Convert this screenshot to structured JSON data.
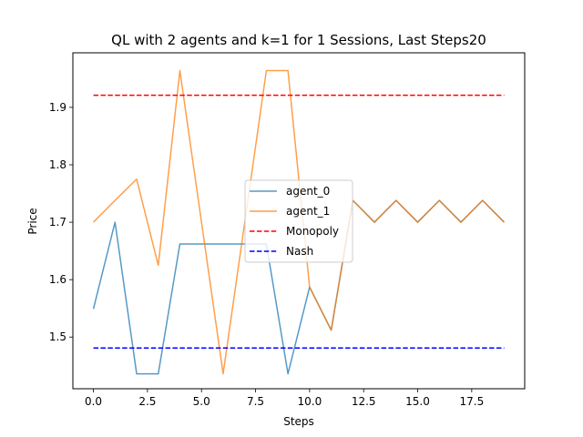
{
  "chart_data": {
    "type": "line",
    "title": "QL with 2 agents and k=1 for 1 Sessions, Last Steps20",
    "xlabel": "Steps",
    "ylabel": "Price",
    "xlim": [
      -0.95,
      19.95
    ],
    "ylim": [
      1.41,
      1.995
    ],
    "x_ticks": [
      0.0,
      2.5,
      5.0,
      7.5,
      10.0,
      12.5,
      15.0,
      17.5
    ],
    "x_tick_labels": [
      "0.0",
      "2.5",
      "5.0",
      "7.5",
      "10.0",
      "12.5",
      "15.0",
      "17.5"
    ],
    "y_ticks": [
      1.5,
      1.6,
      1.7,
      1.8,
      1.9
    ],
    "y_tick_labels": [
      "1.5",
      "1.6",
      "1.7",
      "1.8",
      "1.9"
    ],
    "grid": false,
    "legend_position": "center",
    "x": [
      0,
      1,
      2,
      3,
      4,
      5,
      6,
      7,
      8,
      9,
      10,
      11,
      12,
      13,
      14,
      15,
      16,
      17,
      18,
      19
    ],
    "series": [
      {
        "name": "agent_0",
        "color": "#1f77b4",
        "style": "solid",
        "opacity": 0.75,
        "values": [
          1.549,
          1.7,
          1.436,
          1.436,
          1.662,
          1.662,
          1.662,
          1.662,
          1.662,
          1.436,
          1.587,
          1.512,
          1.738,
          1.7,
          1.738,
          1.7,
          1.738,
          1.7,
          1.738,
          1.7
        ]
      },
      {
        "name": "agent_1",
        "color": "#ff7f0e",
        "style": "solid",
        "opacity": 0.75,
        "values": [
          1.7,
          1.738,
          1.775,
          1.625,
          1.964,
          1.7,
          1.436,
          1.7,
          1.964,
          1.964,
          1.587,
          1.512,
          1.738,
          1.7,
          1.738,
          1.7,
          1.738,
          1.7,
          1.738,
          1.7
        ]
      },
      {
        "name": "Monopoly",
        "color": "#ff0000",
        "style": "dashed",
        "opacity": 1,
        "values": [
          1.921,
          1.921,
          1.921,
          1.921,
          1.921,
          1.921,
          1.921,
          1.921,
          1.921,
          1.921,
          1.921,
          1.921,
          1.921,
          1.921,
          1.921,
          1.921,
          1.921,
          1.921,
          1.921,
          1.921
        ]
      },
      {
        "name": "Nash",
        "color": "#0000ff",
        "style": "dashed",
        "opacity": 1,
        "values": [
          1.481,
          1.481,
          1.481,
          1.481,
          1.481,
          1.481,
          1.481,
          1.481,
          1.481,
          1.481,
          1.481,
          1.481,
          1.481,
          1.481,
          1.481,
          1.481,
          1.481,
          1.481,
          1.481,
          1.481
        ]
      }
    ]
  }
}
